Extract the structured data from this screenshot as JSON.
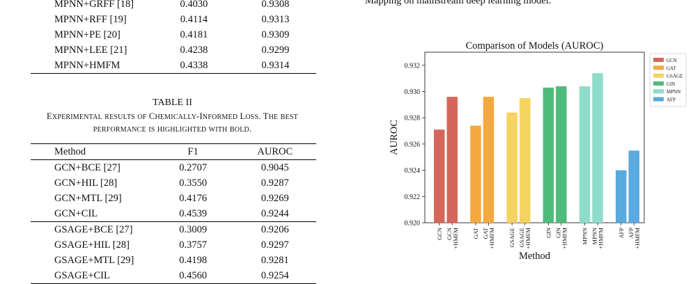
{
  "top_table": {
    "rows": [
      {
        "method": "MPNN+GRFF [18]",
        "f1": "0.4030",
        "auroc": "0.9308",
        "bold_f1": false,
        "bold_auroc": false
      },
      {
        "method": "MPNN+RFF [19]",
        "f1": "0.4114",
        "auroc": "0.9313",
        "bold_f1": false,
        "bold_auroc": false
      },
      {
        "method": "MPNN+PE [20]",
        "f1": "0.4181",
        "auroc": "0.9309",
        "bold_f1": false,
        "bold_auroc": false
      },
      {
        "method": "MPNN+LEE [21]",
        "f1": "0.4238",
        "auroc": "0.9299",
        "bold_f1": false,
        "bold_auroc": false
      },
      {
        "method": "MPNN+HMFM",
        "f1": "0.4338",
        "auroc": "0.9314",
        "bold_f1": true,
        "bold_auroc": true
      }
    ]
  },
  "caption": {
    "table_number": "TABLE II",
    "line1": "Experimental results of Chemically-Informed Loss. The best",
    "line2": "performance is highlighted with bold."
  },
  "bottom_table": {
    "headers": {
      "method": "Method",
      "f1": "F1",
      "auroc": "AUROC"
    },
    "groups": [
      [
        {
          "method": "GCN+BCE [27]",
          "f1": "0.2707",
          "auroc": "0.9045",
          "bold_f1": false,
          "bold_auroc": false
        },
        {
          "method": "GCN+HIL [28]",
          "f1": "0.3550",
          "auroc": "0.9287",
          "bold_f1": false,
          "bold_auroc": true
        },
        {
          "method": "GCN+MTL [29]",
          "f1": "0.4176",
          "auroc": "0.9269",
          "bold_f1": false,
          "bold_auroc": false
        },
        {
          "method": "GCN+CIL",
          "f1": "0.4539",
          "auroc": "0.9244",
          "bold_f1": true,
          "bold_auroc": false
        }
      ],
      [
        {
          "method": "GSAGE+BCE [27]",
          "f1": "0.3009",
          "auroc": "0.9206",
          "bold_f1": false,
          "bold_auroc": false
        },
        {
          "method": "GSAGE+HIL [28]",
          "f1": "0.3757",
          "auroc": "0.9297",
          "bold_f1": false,
          "bold_auroc": true
        },
        {
          "method": "GSAGE+MTL [29]",
          "f1": "0.4198",
          "auroc": "0.9281",
          "bold_f1": false,
          "bold_auroc": false
        },
        {
          "method": "GSAGE+CIL",
          "f1": "0.4560",
          "auroc": "0.9254",
          "bold_f1": true,
          "bold_auroc": false
        }
      ]
    ]
  },
  "right_text": "Mapping on mainstream deep learning model.",
  "chart_data": {
    "type": "bar",
    "title": "Comparison of Models (AUROC)",
    "xlabel": "Method",
    "ylabel": "AUROC",
    "ylim": [
      0.92,
      0.933
    ],
    "yticks": [
      "0.920",
      "0.922",
      "0.924",
      "0.926",
      "0.928",
      "0.930",
      "0.932"
    ],
    "grid": false,
    "legend_position": "right",
    "groups": [
      {
        "name": "GCN",
        "color": "#d4675a",
        "bars": [
          {
            "label": "GCN",
            "value": 0.9271
          },
          {
            "label": "GCN\n+HMFM",
            "value": 0.9296
          }
        ]
      },
      {
        "name": "GAT",
        "color": "#f4a93e",
        "bars": [
          {
            "label": "GAT",
            "value": 0.9274
          },
          {
            "label": "GAT\n+HMFM",
            "value": 0.9296
          }
        ]
      },
      {
        "name": "GSAGE",
        "color": "#f4d35e",
        "bars": [
          {
            "label": "GSAGE",
            "value": 0.9284
          },
          {
            "label": "GSAGE\n+HMFM",
            "value": 0.9295
          }
        ]
      },
      {
        "name": "GIN",
        "color": "#4fbb7b",
        "bars": [
          {
            "label": "GIN",
            "value": 0.9303
          },
          {
            "label": "GIN\n+HMFM",
            "value": 0.9304
          }
        ]
      },
      {
        "name": "MPNN",
        "color": "#8fdccb",
        "bars": [
          {
            "label": "MPNN",
            "value": 0.9304
          },
          {
            "label": "MPNN\n+HMFM",
            "value": 0.9314
          }
        ]
      },
      {
        "name": "AFP",
        "color": "#5aa9df",
        "bars": [
          {
            "label": "AFP",
            "value": 0.924
          },
          {
            "label": "AFP\n+HMFM",
            "value": 0.9255
          }
        ]
      }
    ]
  }
}
